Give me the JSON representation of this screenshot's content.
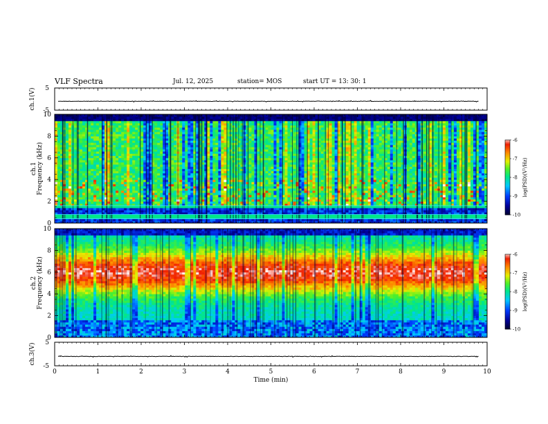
{
  "header": {
    "title": "VLF Spectra",
    "date": "Jul. 12, 2025",
    "station": "station= MOS",
    "start": "start UT =  13: 30: 1"
  },
  "chart_data": [
    {
      "type": "line",
      "panel": "ch1-waveform",
      "ylabel": "ch.1(V)",
      "ylim": [
        -5,
        5
      ],
      "yticks": [
        "5",
        "-5"
      ],
      "series": [
        {
          "values": "flat trace near -1"
        }
      ],
      "approx_level": -1
    },
    {
      "type": "heatmap",
      "panel": "ch1-spectrogram",
      "ylabel": "ch.1\nFrequency (kHz)",
      "ylim": [
        0,
        10
      ],
      "yticks": [
        "0",
        "2",
        "4",
        "6",
        "8",
        "10"
      ],
      "xlim": [
        0,
        10
      ],
      "colorbar": {
        "label": "log(PSD)(V²/Hz)",
        "range": [
          -10,
          -6
        ],
        "ticks": [
          "-6",
          "-7",
          "-8",
          "-9",
          "-10"
        ]
      },
      "bands_khz": [
        1.6,
        0.8,
        0.4
      ]
    },
    {
      "type": "heatmap",
      "panel": "ch2-spectrogram",
      "ylabel": "ch.2\nFrequency (kHz)",
      "ylim": [
        0,
        10
      ],
      "yticks": [
        "0",
        "2",
        "4",
        "6",
        "8",
        "10"
      ],
      "xlim": [
        0,
        10
      ],
      "colorbar": {
        "label": "log(PSD)(V²/Hz)",
        "range": [
          -10,
          -6
        ],
        "ticks": [
          "-6",
          "-7",
          "-8",
          "-9",
          "-10"
        ]
      },
      "peak_band_khz": [
        4.5,
        7.5
      ]
    },
    {
      "type": "line",
      "panel": "ch3-waveform",
      "ylabel": "ch.3(V)",
      "ylim": [
        -5,
        5
      ],
      "yticks": [
        "5",
        "-5"
      ],
      "series": [
        {
          "values": "flat trace near -1"
        }
      ],
      "approx_level": -1
    }
  ],
  "xaxis": {
    "label": "Time (min)",
    "ticks": [
      "0",
      "1",
      "2",
      "3",
      "4",
      "5",
      "6",
      "7",
      "8",
      "9",
      "10"
    ],
    "range": [
      0,
      10
    ]
  },
  "colors": {
    "axis": "#000000",
    "bg": "#ffffff"
  }
}
